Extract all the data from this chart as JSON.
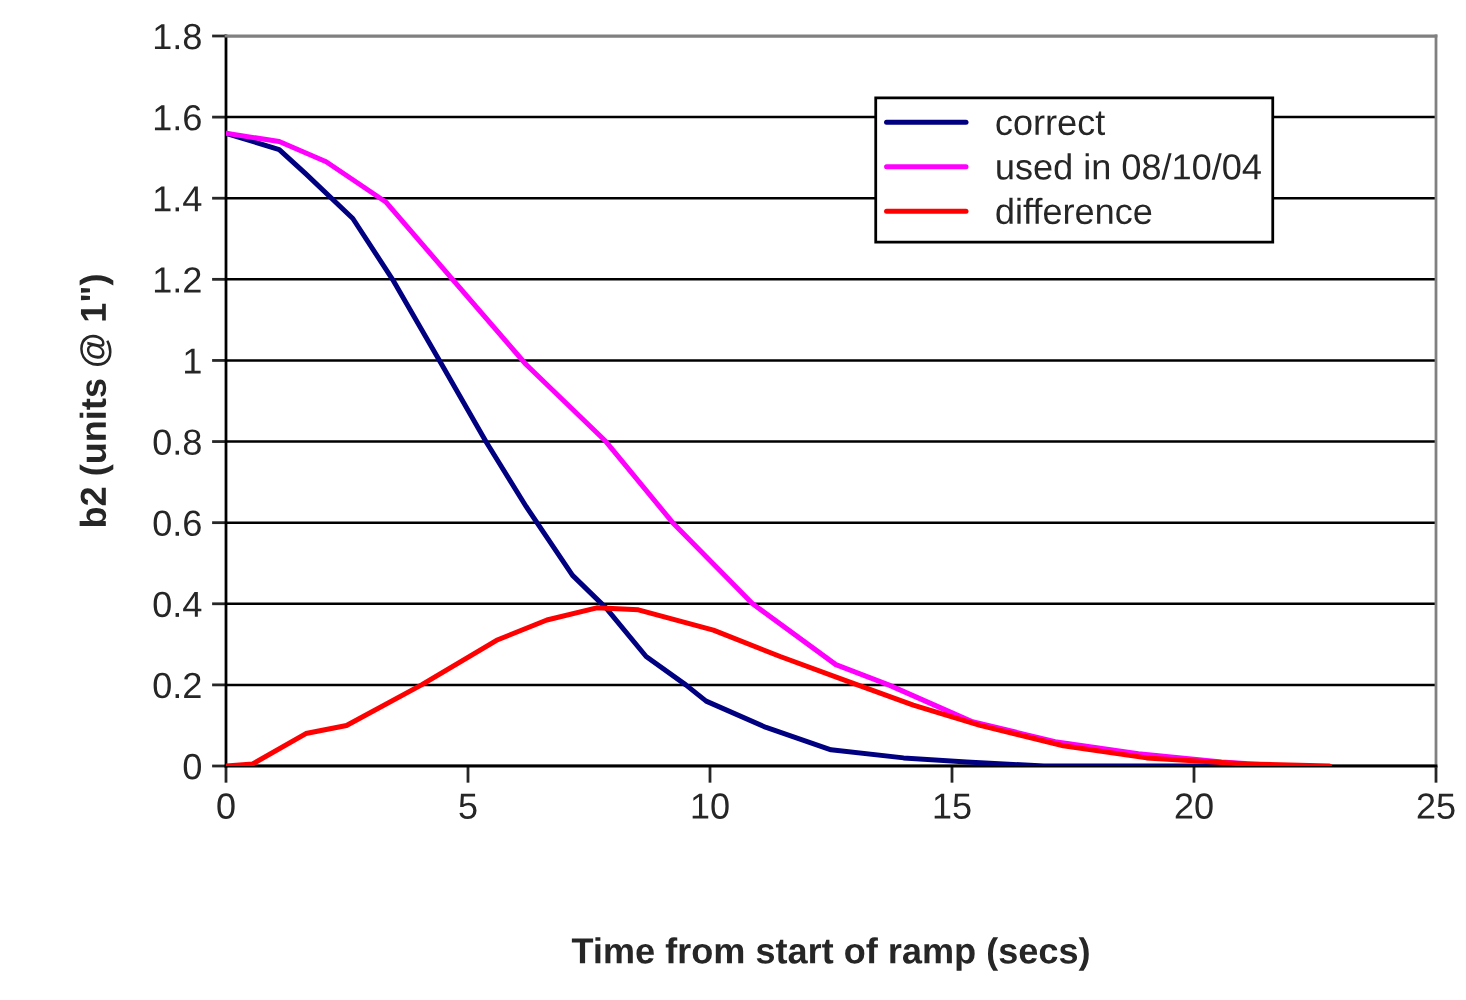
{
  "chart_data": {
    "type": "line",
    "xlabel": "Time from start of ramp (secs)",
    "ylabel": "b2 (units @ 1\")",
    "xlim": [
      0,
      25
    ],
    "xticks": [
      0,
      5,
      10,
      15,
      20,
      25
    ],
    "ylim": [
      0,
      1.8
    ],
    "yticks": [
      0,
      0.2,
      0.4,
      0.6,
      0.8,
      1,
      1.2,
      1.4,
      1.6,
      1.8
    ],
    "grid": "y",
    "legend": "top right",
    "marker": "none",
    "line_style": "solid",
    "series": [
      {
        "name": "correct",
        "color": "#000080",
        "x": [
          0,
          1.1,
          1.65,
          2.62,
          3.44,
          4.41,
          5.37,
          6.2,
          7.16,
          7.85,
          8.68,
          9.5,
          9.92,
          11.16,
          12.5,
          14.0,
          15.3,
          16.9,
          21.5
        ],
        "values": [
          1.56,
          1.52,
          1.46,
          1.35,
          1.2,
          1.0,
          0.8,
          0.64,
          0.47,
          0.39,
          0.27,
          0.2,
          0.16,
          0.095,
          0.04,
          0.02,
          0.01,
          0,
          0
        ]
      },
      {
        "name": "used in 08/10/04",
        "color": "#ff00ff",
        "x": [
          0,
          1.1,
          2.07,
          3.31,
          4.68,
          6.2,
          7.85,
          9.23,
          10.88,
          12.6,
          13.69,
          15.4,
          17.13,
          18.85,
          20.57,
          21.8
        ],
        "values": [
          1.56,
          1.54,
          1.49,
          1.39,
          1.2,
          0.99,
          0.8,
          0.6,
          0.4,
          0.25,
          0.2,
          0.11,
          0.06,
          0.03,
          0.01,
          0
        ]
      },
      {
        "name": "difference",
        "color": "#ff0000",
        "x": [
          0,
          0.55,
          1.65,
          2.49,
          4.04,
          5.59,
          6.63,
          7.66,
          8.52,
          10.07,
          11.45,
          12.82,
          14.2,
          15.58,
          17.3,
          19.02,
          21.08,
          22.8
        ],
        "values": [
          0,
          0.005,
          0.08,
          0.1,
          0.2,
          0.31,
          0.36,
          0.39,
          0.385,
          0.335,
          0.27,
          0.21,
          0.15,
          0.1,
          0.05,
          0.02,
          0.005,
          0
        ]
      }
    ]
  }
}
